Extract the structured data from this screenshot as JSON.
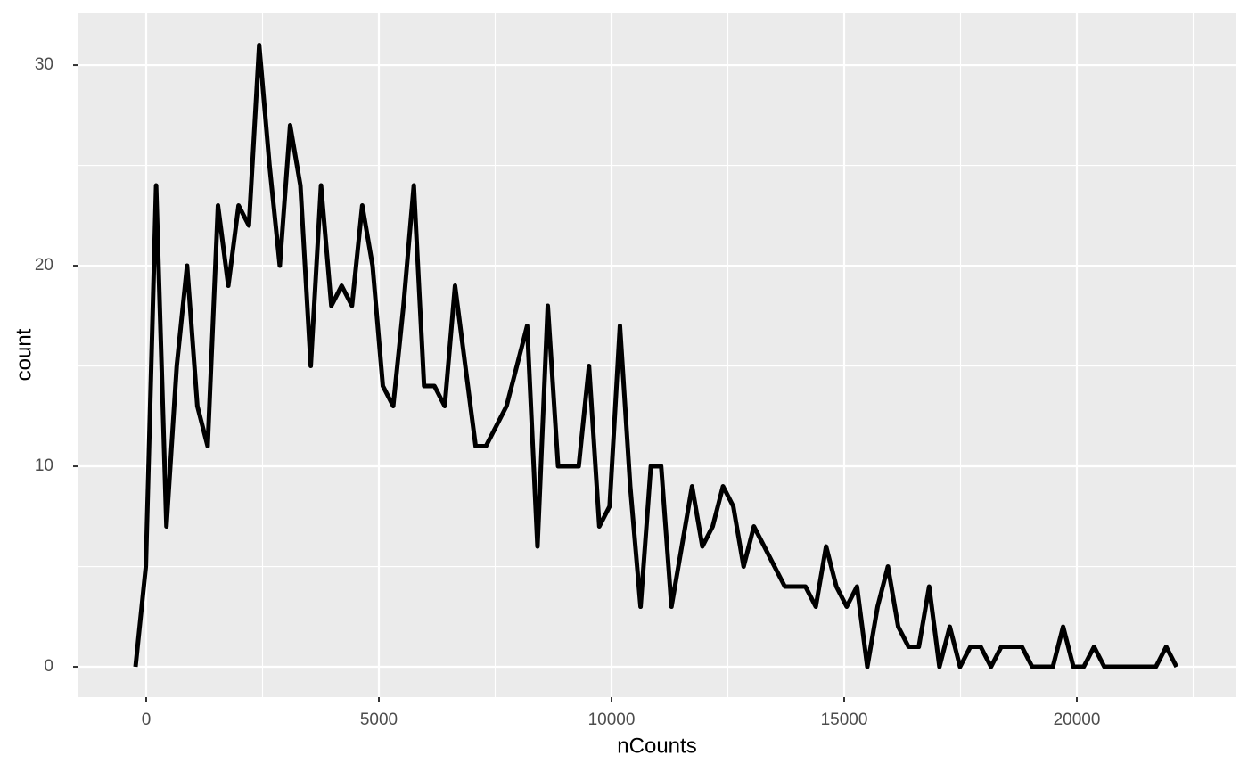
{
  "chart_data": {
    "type": "line",
    "x_label": "nCounts",
    "y_label": "count",
    "color": "#000000",
    "grid": true,
    "x": [
      -230,
      -8,
      213,
      435,
      656,
      878,
      1099,
      1321,
      1542,
      1764,
      1985,
      2207,
      2428,
      2650,
      2871,
      3093,
      3314,
      3536,
      3757,
      3979,
      4200,
      4422,
      4643,
      4865,
      5086,
      5308,
      5529,
      5751,
      5972,
      6194,
      6415,
      6637,
      6858,
      7080,
      7301,
      7523,
      7744,
      7966,
      8187,
      8409,
      8630,
      8852,
      9073,
      9295,
      9516,
      9738,
      9959,
      10181,
      10402,
      10624,
      10845,
      11067,
      11288,
      11510,
      11731,
      11953,
      12174,
      12396,
      12617,
      12839,
      13060,
      13282,
      13503,
      13725,
      13946,
      14168,
      14389,
      14611,
      14832,
      15054,
      15275,
      15497,
      15718,
      15940,
      16161,
      16383,
      16604,
      16826,
      17047,
      17269,
      17490,
      17712,
      17933,
      18155,
      18376,
      18598,
      18819,
      19041,
      19262,
      19484,
      19705,
      19927,
      20148,
      20370,
      20591,
      20813,
      21034,
      21256,
      21477,
      21699,
      21920,
      22142
    ],
    "values": [
      0,
      5,
      24,
      7,
      15,
      20,
      13,
      11,
      23,
      19,
      23,
      22,
      31,
      25,
      20,
      27,
      24,
      15,
      24,
      18,
      19,
      18,
      23,
      20,
      14,
      13,
      18,
      24,
      14,
      14,
      13,
      19,
      15,
      11,
      11,
      12,
      13,
      15,
      17,
      6,
      18,
      10,
      10,
      10,
      15,
      7,
      8,
      17,
      9,
      3,
      10,
      10,
      3,
      6,
      9,
      6,
      7,
      9,
      8,
      5,
      7,
      6,
      5,
      4,
      4,
      4,
      3,
      6,
      4,
      3,
      4,
      0,
      3,
      5,
      2,
      1,
      1,
      4,
      0,
      2,
      0,
      1,
      1,
      0,
      1,
      1,
      1,
      0,
      0,
      0,
      2,
      0,
      0,
      1,
      0,
      0,
      0,
      0,
      0,
      0,
      1,
      0
    ],
    "xlim": [
      -1456,
      23410
    ],
    "ylim": [
      -1.51,
      32.58
    ],
    "xticks": [
      0,
      5000,
      10000,
      15000,
      20000
    ],
    "yticks": [
      0,
      10,
      20,
      30
    ]
  }
}
